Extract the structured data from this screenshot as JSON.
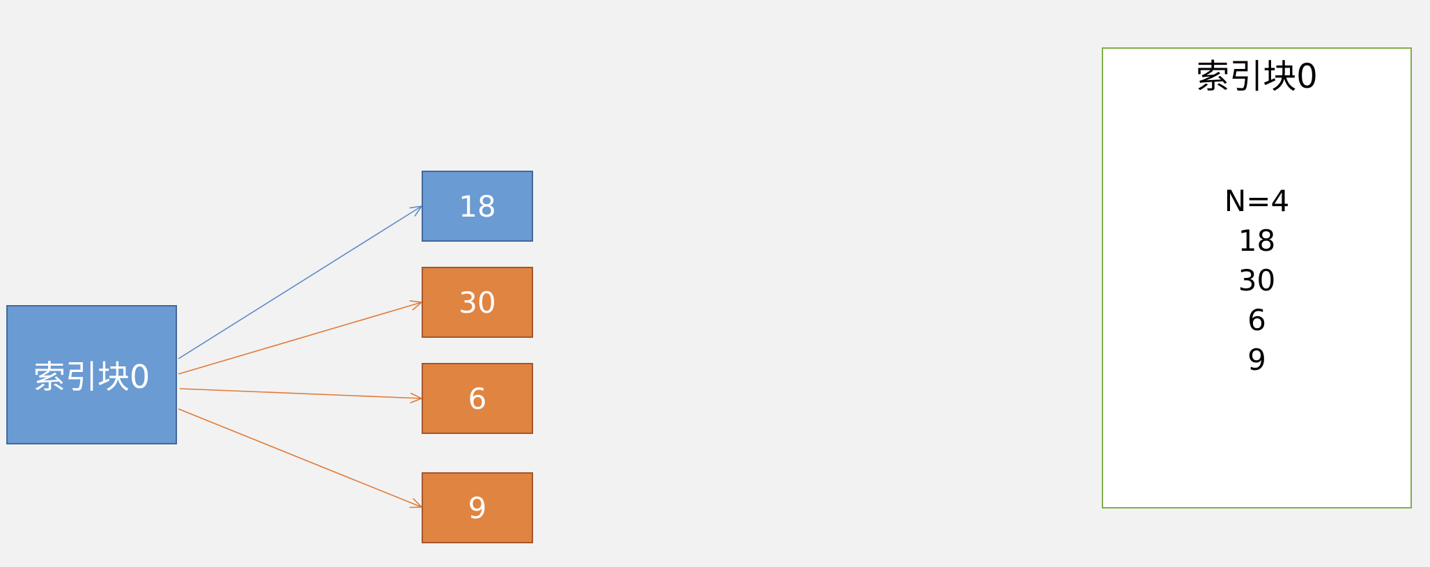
{
  "diagram": {
    "index_block": {
      "label": "索引块0"
    },
    "entries": [
      {
        "label": "18",
        "color": "#6a9bd2"
      },
      {
        "label": "30",
        "color": "#e08442"
      },
      {
        "label": "6",
        "color": "#e08442"
      },
      {
        "label": "9",
        "color": "#e08442"
      }
    ],
    "arrow_colors": {
      "blue": "#5b8bc9",
      "orange": "#e07a35"
    }
  },
  "panel": {
    "title": "索引块0",
    "lines": [
      "N=4",
      "18",
      "30",
      "6",
      "9"
    ],
    "border_color": "#7fae4c"
  }
}
